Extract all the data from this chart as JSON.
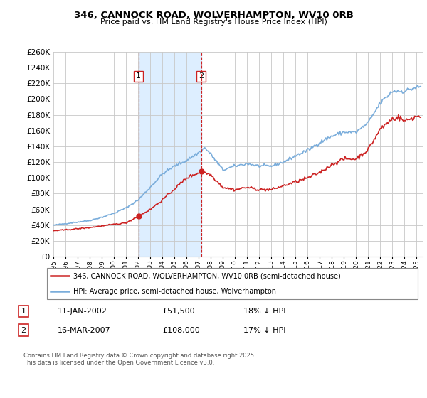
{
  "title": "346, CANNOCK ROAD, WOLVERHAMPTON, WV10 0RB",
  "subtitle": "Price paid vs. HM Land Registry's House Price Index (HPI)",
  "background_color": "#ffffff",
  "grid_color": "#c8c8c8",
  "hpi_color": "#7aaddb",
  "price_color": "#cc2222",
  "vline_color": "#cc2222",
  "shade_color": "#ddeeff",
  "purchase1_year": 2002.03,
  "purchase2_year": 2007.21,
  "purchase1_price": 51500,
  "purchase2_price": 108000,
  "ylim_max": 260000,
  "ylim_min": 0,
  "ytick_step": 20000,
  "xlim_min": 1995.0,
  "xlim_max": 2025.5,
  "legend_line1": "346, CANNOCK ROAD, WOLVERHAMPTON, WV10 0RB (semi-detached house)",
  "legend_line2": "HPI: Average price, semi-detached house, Wolverhampton",
  "annotation1_label": "1",
  "annotation1_date": "11-JAN-2002",
  "annotation1_price": "£51,500",
  "annotation1_hpi": "18% ↓ HPI",
  "annotation2_label": "2",
  "annotation2_date": "16-MAR-2007",
  "annotation2_price": "£108,000",
  "annotation2_hpi": "17% ↓ HPI",
  "footer": "Contains HM Land Registry data © Crown copyright and database right 2025.\nThis data is licensed under the Open Government Licence v3.0."
}
